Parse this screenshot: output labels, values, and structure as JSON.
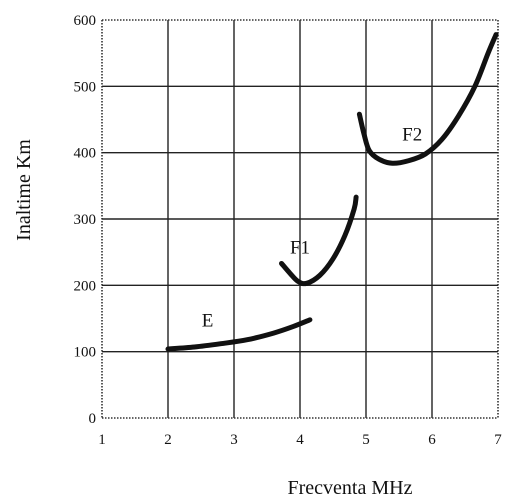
{
  "chart_data": {
    "type": "line",
    "xlabel": "Frecventa MHz",
    "ylabel": "Inaltime Km",
    "xlim": [
      1,
      7
    ],
    "ylim": [
      0,
      600
    ],
    "x_ticks": [
      "1",
      "2",
      "3",
      "4",
      "5",
      "6",
      "7"
    ],
    "y_ticks": [
      "0",
      "100",
      "200",
      "300",
      "400",
      "500",
      "600"
    ],
    "grid": true,
    "series": [
      {
        "name": "E",
        "points": [
          [
            2.0,
            104
          ],
          [
            2.4,
            107
          ],
          [
            2.8,
            112
          ],
          [
            3.2,
            118
          ],
          [
            3.6,
            128
          ],
          [
            3.9,
            138
          ],
          [
            4.15,
            148
          ]
        ]
      },
      {
        "name": "F1",
        "points": [
          [
            3.72,
            233
          ],
          [
            3.85,
            218
          ],
          [
            3.97,
            206
          ],
          [
            4.1,
            203
          ],
          [
            4.3,
            215
          ],
          [
            4.5,
            240
          ],
          [
            4.68,
            275
          ],
          [
            4.82,
            315
          ],
          [
            4.85,
            333
          ]
        ]
      },
      {
        "name": "F2",
        "points": [
          [
            4.9,
            458
          ],
          [
            4.97,
            428
          ],
          [
            5.05,
            403
          ],
          [
            5.2,
            390
          ],
          [
            5.4,
            384
          ],
          [
            5.65,
            388
          ],
          [
            5.9,
            398
          ],
          [
            6.15,
            420
          ],
          [
            6.4,
            455
          ],
          [
            6.65,
            500
          ],
          [
            6.85,
            550
          ],
          [
            6.97,
            578
          ]
        ]
      }
    ]
  }
}
